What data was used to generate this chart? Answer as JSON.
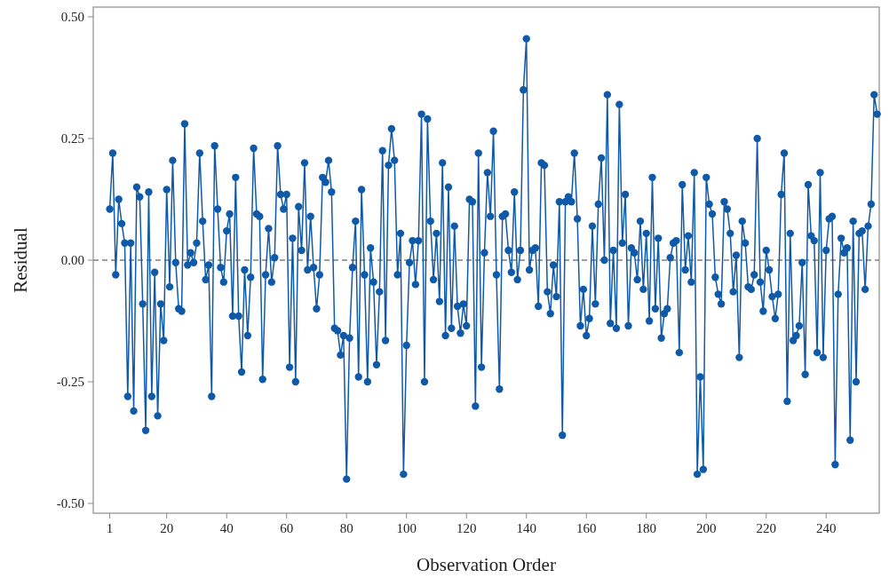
{
  "chart_data": {
    "type": "line",
    "xlabel": "Observation Order",
    "ylabel": "Residual",
    "xlim": [
      -4.5,
      257.7
    ],
    "ylim": [
      -0.52,
      0.52
    ],
    "xticks": [
      1,
      20,
      40,
      60,
      80,
      100,
      120,
      140,
      160,
      180,
      200,
      220,
      240
    ],
    "yticks": [
      {
        "value": -0.5,
        "label": "-0.50"
      },
      {
        "value": -0.25,
        "label": "-0.25"
      },
      {
        "value": 0,
        "label": "0.00"
      },
      {
        "value": 0.25,
        "label": "0.25"
      },
      {
        "value": 0.5,
        "label": "0.50"
      }
    ],
    "grid": false,
    "marker": "circle",
    "line_style": "solid",
    "ref_lines": [
      {
        "axis": "y",
        "value": 0,
        "color": "#7f7f7f",
        "line_style": "dashed"
      }
    ],
    "series": [
      {
        "color": "#0f5aa8",
        "x": [
          1,
          2,
          3,
          4,
          5,
          6,
          7,
          8,
          9,
          10,
          11,
          12,
          13,
          14,
          15,
          16,
          17,
          18,
          19,
          20,
          21,
          22,
          23,
          24,
          25,
          26,
          27,
          28,
          29,
          30,
          31,
          32,
          33,
          34,
          35,
          36,
          37,
          38,
          39,
          40,
          41,
          42,
          43,
          44,
          45,
          46,
          47,
          48,
          49,
          50,
          51,
          52,
          53,
          54,
          55,
          56,
          57,
          58,
          59,
          60,
          61,
          62,
          63,
          64,
          65,
          66,
          67,
          68,
          69,
          70,
          71,
          72,
          73,
          74,
          75,
          76,
          77,
          78,
          79,
          80,
          81,
          82,
          83,
          84,
          85,
          86,
          87,
          88,
          89,
          90,
          91,
          92,
          93,
          94,
          95,
          96,
          97,
          98,
          99,
          100,
          101,
          102,
          103,
          104,
          105,
          106,
          107,
          108,
          109,
          110,
          111,
          112,
          113,
          114,
          115,
          116,
          117,
          118,
          119,
          120,
          121,
          122,
          123,
          124,
          125,
          126,
          127,
          128,
          129,
          130,
          131,
          132,
          133,
          134,
          135,
          136,
          137,
          138,
          139,
          140,
          141,
          142,
          143,
          144,
          145,
          146,
          147,
          148,
          149,
          150,
          151,
          152,
          153,
          154,
          155,
          156,
          157,
          158,
          159,
          160,
          161,
          162,
          163,
          164,
          165,
          166,
          167,
          168,
          169,
          170,
          171,
          172,
          173,
          174,
          175,
          176,
          177,
          178,
          179,
          180,
          181,
          182,
          183,
          184,
          185,
          186,
          187,
          188,
          189,
          190,
          191,
          192,
          193,
          194,
          195,
          196,
          197,
          198,
          199,
          200,
          201,
          202,
          203,
          204,
          205,
          206,
          207,
          208,
          209,
          210,
          211,
          212,
          213,
          214,
          215,
          216,
          217,
          218,
          219,
          220,
          221,
          222,
          223,
          224,
          225,
          226,
          227,
          228,
          229,
          230,
          231,
          232,
          233,
          234,
          235,
          236,
          237,
          238,
          239,
          240,
          241,
          242,
          243,
          244,
          245,
          246,
          247,
          248,
          249,
          250,
          251,
          252,
          253,
          254,
          255,
          256,
          257
        ],
        "values": [
          0.105,
          0.22,
          -0.03,
          0.125,
          0.075,
          0.035,
          -0.28,
          0.035,
          -0.31,
          0.15,
          0.13,
          -0.09,
          -0.35,
          0.14,
          -0.28,
          -0.025,
          -0.32,
          -0.09,
          -0.165,
          0.145,
          -0.055,
          0.205,
          -0.005,
          -0.1,
          -0.105,
          0.28,
          -0.01,
          0.015,
          -0.005,
          0.035,
          0.22,
          0.08,
          -0.04,
          -0.01,
          -0.28,
          0.235,
          0.105,
          -0.015,
          -0.045,
          0.06,
          0.095,
          -0.115,
          0.17,
          -0.115,
          -0.23,
          -0.02,
          -0.155,
          -0.035,
          0.23,
          0.095,
          0.09,
          -0.245,
          -0.03,
          0.065,
          -0.045,
          0.005,
          0.235,
          0.135,
          0.105,
          0.135,
          -0.22,
          0.045,
          -0.25,
          0.11,
          0.02,
          0.2,
          -0.02,
          0.09,
          -0.015,
          -0.1,
          -0.03,
          0.17,
          0.16,
          0.205,
          0.14,
          -0.14,
          -0.145,
          -0.195,
          -0.155,
          -0.45,
          -0.16,
          -0.015,
          0.08,
          -0.24,
          0.145,
          -0.03,
          -0.25,
          0.025,
          -0.045,
          -0.215,
          -0.065,
          0.225,
          -0.165,
          0.195,
          0.27,
          0.205,
          -0.03,
          0.055,
          -0.44,
          -0.175,
          -0.005,
          0.04,
          -0.05,
          0.04,
          0.3,
          -0.25,
          0.29,
          0.08,
          -0.04,
          0.055,
          -0.085,
          0.2,
          -0.155,
          0.15,
          -0.14,
          0.07,
          -0.095,
          -0.15,
          -0.09,
          -0.135,
          0.125,
          0.12,
          -0.3,
          0.22,
          -0.22,
          0.015,
          0.18,
          0.09,
          0.265,
          -0.03,
          -0.265,
          0.09,
          0.095,
          0.02,
          -0.025,
          0.14,
          -0.04,
          0.02,
          0.35,
          0.455,
          -0.02,
          0.02,
          0.025,
          -0.095,
          0.2,
          0.195,
          -0.065,
          -0.11,
          -0.01,
          -0.075,
          0.12,
          -0.36,
          0.12,
          0.13,
          0.12,
          0.22,
          0.085,
          -0.135,
          -0.06,
          -0.155,
          -0.12,
          0.07,
          -0.09,
          0.115,
          0.21,
          0.0,
          0.34,
          -0.13,
          0.02,
          -0.14,
          0.32,
          0.035,
          0.135,
          -0.135,
          0.025,
          0.015,
          -0.04,
          0.08,
          -0.06,
          0.055,
          -0.125,
          0.17,
          -0.1,
          0.045,
          -0.16,
          -0.11,
          -0.1,
          0.005,
          0.035,
          0.04,
          -0.19,
          0.155,
          -0.02,
          0.05,
          -0.045,
          0.18,
          -0.44,
          -0.24,
          -0.43,
          0.17,
          0.115,
          0.095,
          -0.035,
          -0.07,
          -0.09,
          0.12,
          0.105,
          0.055,
          -0.065,
          0.01,
          -0.2,
          0.08,
          0.035,
          -0.055,
          -0.06,
          -0.03,
          0.25,
          -0.045,
          -0.105,
          0.02,
          -0.02,
          -0.075,
          -0.12,
          -0.07,
          0.135,
          0.22,
          -0.29,
          0.055,
          -0.165,
          -0.155,
          -0.135,
          -0.005,
          -0.235,
          0.155,
          0.05,
          0.04,
          -0.19,
          0.18,
          -0.2,
          0.02,
          0.085,
          0.09,
          -0.42,
          -0.07,
          0.045,
          0.015,
          0.025,
          -0.37,
          0.08,
          -0.25,
          0.055,
          0.06,
          -0.06,
          0.07,
          0.115,
          0.34,
          0.3
        ]
      }
    ]
  }
}
